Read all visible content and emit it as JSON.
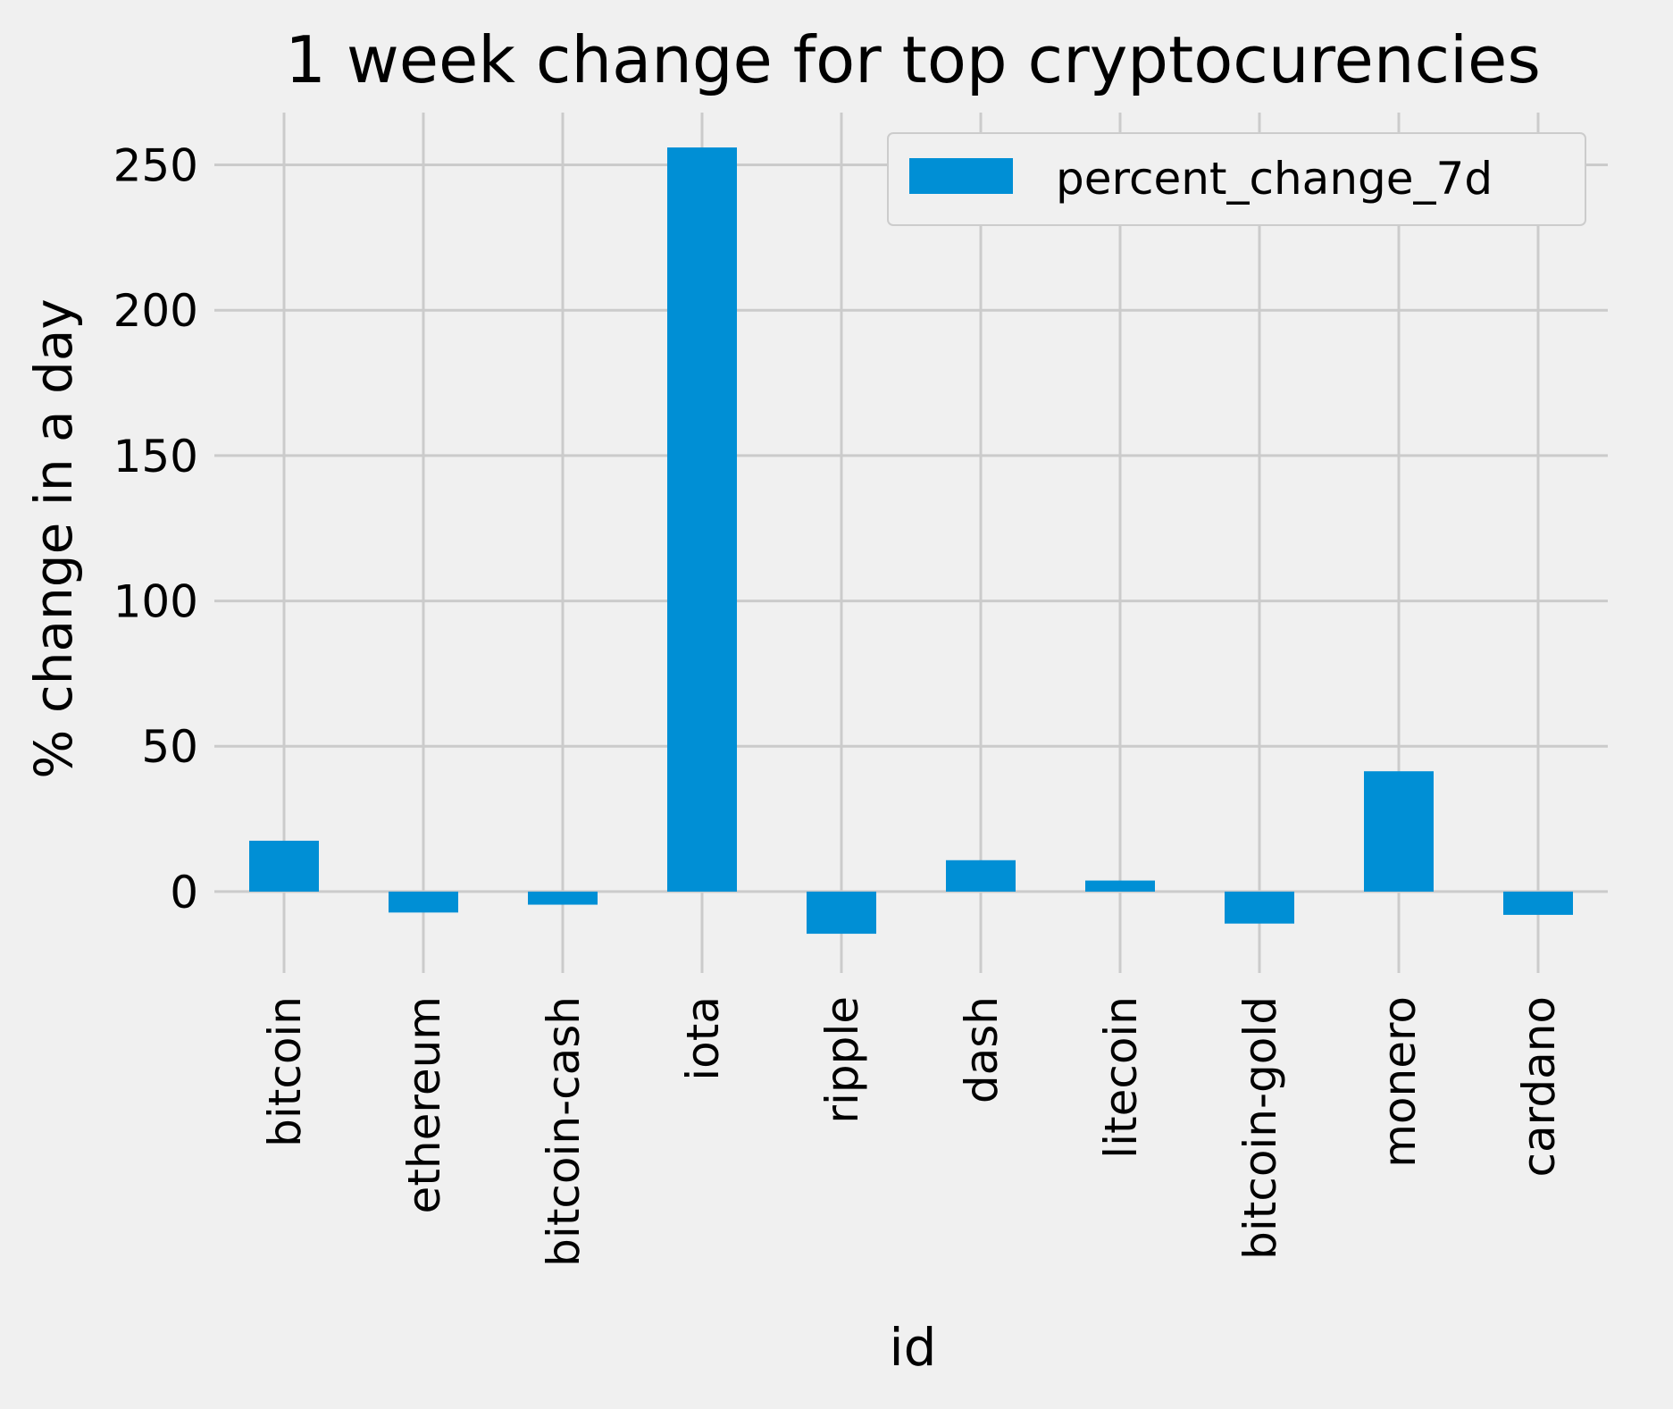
{
  "chart_data": {
    "type": "bar",
    "title": "1 week change for top cryptocurencies",
    "xlabel": "id",
    "ylabel": "% change in a day",
    "categories": [
      "bitcoin",
      "ethereum",
      "bitcoin-cash",
      "iota",
      "ripple",
      "dash",
      "litecoin",
      "bitcoin-gold",
      "monero",
      "cardano"
    ],
    "series": [
      {
        "name": "percent_change_7d",
        "values": [
          17.5,
          -7.2,
          -4.5,
          256.0,
          -14.5,
          10.8,
          3.8,
          -11.0,
          41.4,
          -8.0
        ]
      }
    ],
    "ylim": [
      -28,
      268
    ],
    "yticks": [
      0,
      50,
      100,
      150,
      200,
      250
    ],
    "grid": true,
    "legend_position": "top-right",
    "colors": {
      "bar": "#008fd5",
      "background": "#f0f0f0",
      "grid": "#cbcbcb",
      "legend_border": "#cccccc"
    }
  }
}
